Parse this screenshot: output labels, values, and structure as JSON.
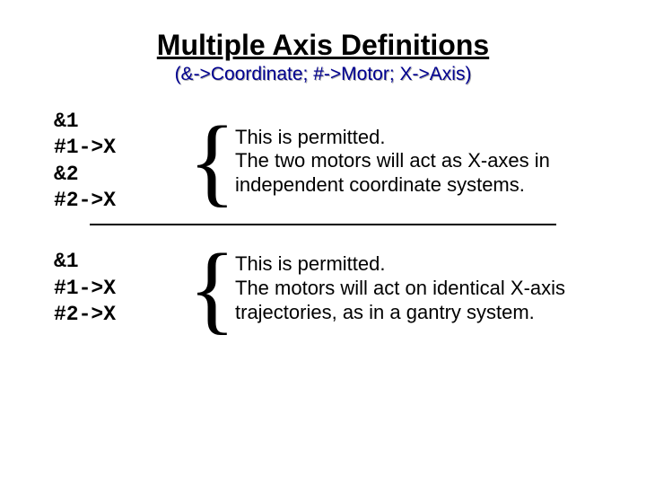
{
  "title": "Multiple Axis Definitions",
  "title_fontsize": 32,
  "title_color": "#000000",
  "title_underline": true,
  "subtitle": "(&->Coordinate; #->Motor; X->Axis)",
  "subtitle_fontsize": 21,
  "subtitle_color": "#000090",
  "subtitle_shadow_color": "#b0b0b0",
  "background_color": "#ffffff",
  "divider_color": "#000000",
  "code_font": "Courier New",
  "code_fontsize": 23,
  "desc_fontsize": 22,
  "brace_fontsize": 110,
  "examples": [
    {
      "code": "&1\n#1->X\n&2\n#2->X",
      "brace": "{",
      "desc": "This is permitted.\nThe two motors will act as X-axes in independent coordinate systems."
    },
    {
      "code": "&1\n#1->X\n#2->X",
      "brace": "{",
      "desc": "This is permitted.\nThe motors will act on identical X-axis trajectories, as in a gantry system."
    }
  ]
}
